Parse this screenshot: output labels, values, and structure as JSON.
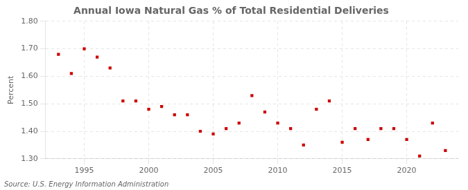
{
  "chart_data": {
    "type": "scatter",
    "title": "Annual Iowa Natural Gas % of Total Residential Deliveries",
    "y_label": "Percent",
    "annotations": [
      "Source: U.S. Energy Information Administration"
    ],
    "x": [
      1993,
      1994,
      1995,
      1996,
      1997,
      1998,
      1999,
      2000,
      2001,
      2002,
      2003,
      2004,
      2005,
      2006,
      2007,
      2008,
      2009,
      2010,
      2011,
      2012,
      2013,
      2014,
      2015,
      2016,
      2017,
      2018,
      2019,
      2020,
      2021,
      2022,
      2023
    ],
    "values": [
      1.68,
      1.61,
      1.7,
      1.67,
      1.63,
      1.51,
      1.51,
      1.48,
      1.49,
      1.46,
      1.46,
      1.4,
      1.39,
      1.41,
      1.43,
      1.53,
      1.47,
      1.43,
      1.41,
      1.35,
      1.48,
      1.51,
      1.36,
      1.41,
      1.37,
      1.41,
      1.41,
      1.37,
      1.31,
      1.43,
      1.33
    ],
    "color": "#cc0000",
    "marker": "square",
    "xlim": [
      1992,
      2024
    ],
    "xticks": [
      1995,
      2000,
      2005,
      2010,
      2015,
      2020
    ],
    "ylim": [
      1.3,
      1.8
    ],
    "yticks": [
      {
        "value": 1.3,
        "label": "1.30"
      },
      {
        "value": 1.4,
        "label": "1.40"
      },
      {
        "value": 1.5,
        "label": "1.50"
      },
      {
        "value": 1.6,
        "label": "1.60"
      },
      {
        "value": 1.7,
        "label": "1.70"
      },
      {
        "value": 1.8,
        "label": "1.80"
      }
    ],
    "grid": true
  }
}
